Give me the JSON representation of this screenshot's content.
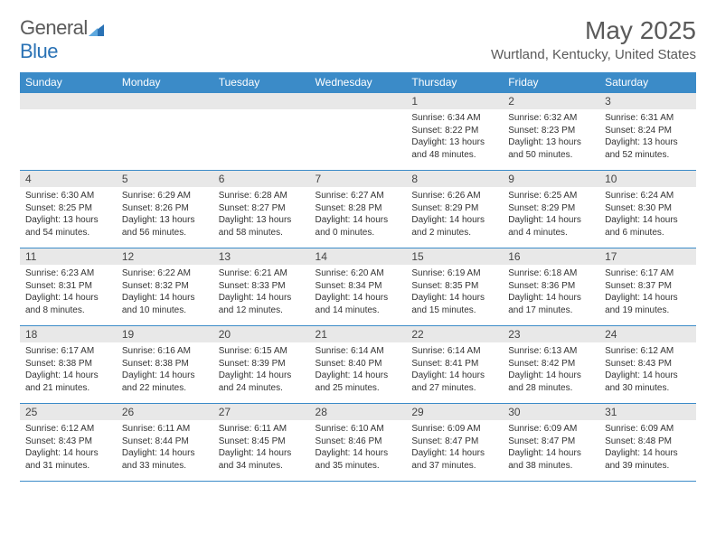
{
  "logo": {
    "word1": "General",
    "word2": "Blue",
    "text_color": "#5a5a5a",
    "accent_color": "#2a72b5"
  },
  "title": "May 2025",
  "location": "Wurtland, Kentucky, United States",
  "weekday_header_bg": "#3b8bc8",
  "weekday_header_fg": "#ffffff",
  "daynum_bg": "#e8e8e8",
  "border_color": "#3b8bc8",
  "weekdays": [
    "Sunday",
    "Monday",
    "Tuesday",
    "Wednesday",
    "Thursday",
    "Friday",
    "Saturday"
  ],
  "weeks": [
    [
      null,
      null,
      null,
      null,
      {
        "n": "1",
        "sunrise": "6:34 AM",
        "sunset": "8:22 PM",
        "daylight": "13 hours and 48 minutes."
      },
      {
        "n": "2",
        "sunrise": "6:32 AM",
        "sunset": "8:23 PM",
        "daylight": "13 hours and 50 minutes."
      },
      {
        "n": "3",
        "sunrise": "6:31 AM",
        "sunset": "8:24 PM",
        "daylight": "13 hours and 52 minutes."
      }
    ],
    [
      {
        "n": "4",
        "sunrise": "6:30 AM",
        "sunset": "8:25 PM",
        "daylight": "13 hours and 54 minutes."
      },
      {
        "n": "5",
        "sunrise": "6:29 AM",
        "sunset": "8:26 PM",
        "daylight": "13 hours and 56 minutes."
      },
      {
        "n": "6",
        "sunrise": "6:28 AM",
        "sunset": "8:27 PM",
        "daylight": "13 hours and 58 minutes."
      },
      {
        "n": "7",
        "sunrise": "6:27 AM",
        "sunset": "8:28 PM",
        "daylight": "14 hours and 0 minutes."
      },
      {
        "n": "8",
        "sunrise": "6:26 AM",
        "sunset": "8:29 PM",
        "daylight": "14 hours and 2 minutes."
      },
      {
        "n": "9",
        "sunrise": "6:25 AM",
        "sunset": "8:29 PM",
        "daylight": "14 hours and 4 minutes."
      },
      {
        "n": "10",
        "sunrise": "6:24 AM",
        "sunset": "8:30 PM",
        "daylight": "14 hours and 6 minutes."
      }
    ],
    [
      {
        "n": "11",
        "sunrise": "6:23 AM",
        "sunset": "8:31 PM",
        "daylight": "14 hours and 8 minutes."
      },
      {
        "n": "12",
        "sunrise": "6:22 AM",
        "sunset": "8:32 PM",
        "daylight": "14 hours and 10 minutes."
      },
      {
        "n": "13",
        "sunrise": "6:21 AM",
        "sunset": "8:33 PM",
        "daylight": "14 hours and 12 minutes."
      },
      {
        "n": "14",
        "sunrise": "6:20 AM",
        "sunset": "8:34 PM",
        "daylight": "14 hours and 14 minutes."
      },
      {
        "n": "15",
        "sunrise": "6:19 AM",
        "sunset": "8:35 PM",
        "daylight": "14 hours and 15 minutes."
      },
      {
        "n": "16",
        "sunrise": "6:18 AM",
        "sunset": "8:36 PM",
        "daylight": "14 hours and 17 minutes."
      },
      {
        "n": "17",
        "sunrise": "6:17 AM",
        "sunset": "8:37 PM",
        "daylight": "14 hours and 19 minutes."
      }
    ],
    [
      {
        "n": "18",
        "sunrise": "6:17 AM",
        "sunset": "8:38 PM",
        "daylight": "14 hours and 21 minutes."
      },
      {
        "n": "19",
        "sunrise": "6:16 AM",
        "sunset": "8:38 PM",
        "daylight": "14 hours and 22 minutes."
      },
      {
        "n": "20",
        "sunrise": "6:15 AM",
        "sunset": "8:39 PM",
        "daylight": "14 hours and 24 minutes."
      },
      {
        "n": "21",
        "sunrise": "6:14 AM",
        "sunset": "8:40 PM",
        "daylight": "14 hours and 25 minutes."
      },
      {
        "n": "22",
        "sunrise": "6:14 AM",
        "sunset": "8:41 PM",
        "daylight": "14 hours and 27 minutes."
      },
      {
        "n": "23",
        "sunrise": "6:13 AM",
        "sunset": "8:42 PM",
        "daylight": "14 hours and 28 minutes."
      },
      {
        "n": "24",
        "sunrise": "6:12 AM",
        "sunset": "8:43 PM",
        "daylight": "14 hours and 30 minutes."
      }
    ],
    [
      {
        "n": "25",
        "sunrise": "6:12 AM",
        "sunset": "8:43 PM",
        "daylight": "14 hours and 31 minutes."
      },
      {
        "n": "26",
        "sunrise": "6:11 AM",
        "sunset": "8:44 PM",
        "daylight": "14 hours and 33 minutes."
      },
      {
        "n": "27",
        "sunrise": "6:11 AM",
        "sunset": "8:45 PM",
        "daylight": "14 hours and 34 minutes."
      },
      {
        "n": "28",
        "sunrise": "6:10 AM",
        "sunset": "8:46 PM",
        "daylight": "14 hours and 35 minutes."
      },
      {
        "n": "29",
        "sunrise": "6:09 AM",
        "sunset": "8:47 PM",
        "daylight": "14 hours and 37 minutes."
      },
      {
        "n": "30",
        "sunrise": "6:09 AM",
        "sunset": "8:47 PM",
        "daylight": "14 hours and 38 minutes."
      },
      {
        "n": "31",
        "sunrise": "6:09 AM",
        "sunset": "8:48 PM",
        "daylight": "14 hours and 39 minutes."
      }
    ]
  ],
  "labels": {
    "sunrise": "Sunrise:",
    "sunset": "Sunset:",
    "daylight": "Daylight:"
  }
}
